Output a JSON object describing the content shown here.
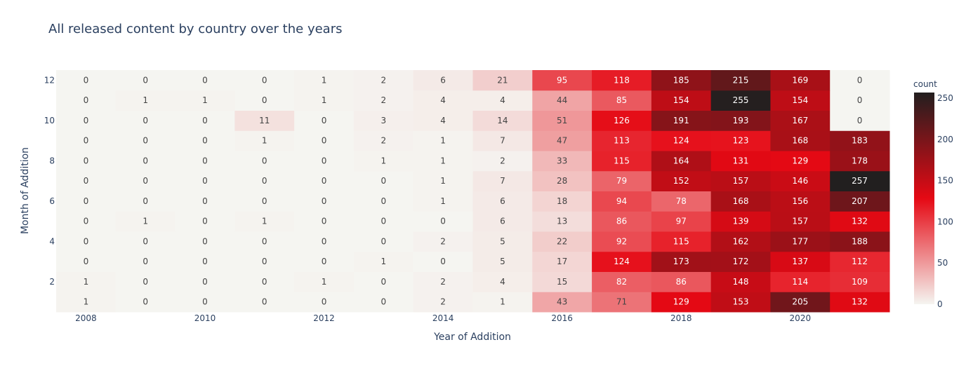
{
  "chart_data": {
    "type": "heatmap",
    "title": "All released content by country over the years",
    "xlabel": "Year of Addition",
    "ylabel": "Month of Addition",
    "colorbar_title": "count",
    "x": [
      2008,
      2009,
      2010,
      2011,
      2012,
      2013,
      2014,
      2015,
      2016,
      2017,
      2018,
      2019,
      2020,
      2021
    ],
    "y": [
      1,
      2,
      3,
      4,
      5,
      6,
      7,
      8,
      9,
      10,
      11,
      12
    ],
    "x_tick_labels": [
      "2008",
      "2010",
      "2012",
      "2014",
      "2016",
      "2018",
      "2020"
    ],
    "y_tick_labels": [
      "2",
      "4",
      "6",
      "8",
      "10",
      "12"
    ],
    "colorbar_ticks": [
      "0",
      "50",
      "100",
      "150",
      "200",
      "250"
    ],
    "z": [
      [
        1,
        0,
        0,
        0,
        0,
        0,
        2,
        1,
        43,
        71,
        129,
        153,
        205,
        132
      ],
      [
        1,
        0,
        0,
        0,
        1,
        0,
        2,
        4,
        15,
        82,
        86,
        148,
        114,
        109
      ],
      [
        0,
        0,
        0,
        0,
        0,
        1,
        0,
        5,
        17,
        124,
        173,
        172,
        137,
        112
      ],
      [
        0,
        0,
        0,
        0,
        0,
        0,
        2,
        5,
        22,
        92,
        115,
        162,
        177,
        188
      ],
      [
        0,
        1,
        0,
        1,
        0,
        0,
        0,
        6,
        13,
        86,
        97,
        139,
        157,
        132
      ],
      [
        0,
        0,
        0,
        0,
        0,
        0,
        1,
        6,
        18,
        94,
        78,
        168,
        156,
        207
      ],
      [
        0,
        0,
        0,
        0,
        0,
        0,
        1,
        7,
        28,
        79,
        152,
        157,
        146,
        257
      ],
      [
        0,
        0,
        0,
        0,
        0,
        1,
        1,
        2,
        33,
        115,
        164,
        131,
        129,
        178
      ],
      [
        0,
        0,
        0,
        1,
        0,
        2,
        1,
        7,
        47,
        113,
        124,
        123,
        168,
        183
      ],
      [
        0,
        0,
        0,
        11,
        0,
        3,
        4,
        14,
        51,
        126,
        191,
        193,
        167,
        0
      ],
      [
        0,
        1,
        1,
        0,
        1,
        2,
        4,
        4,
        44,
        85,
        154,
        255,
        154,
        0
      ],
      [
        0,
        0,
        0,
        0,
        1,
        2,
        6,
        21,
        95,
        118,
        185,
        215,
        169,
        0
      ]
    ],
    "zrange": [
      0,
      257
    ],
    "colorscale": [
      "#f5f5f1",
      "#e50914",
      "#221f1f"
    ],
    "grid": false,
    "legend": "colorbar-right"
  }
}
